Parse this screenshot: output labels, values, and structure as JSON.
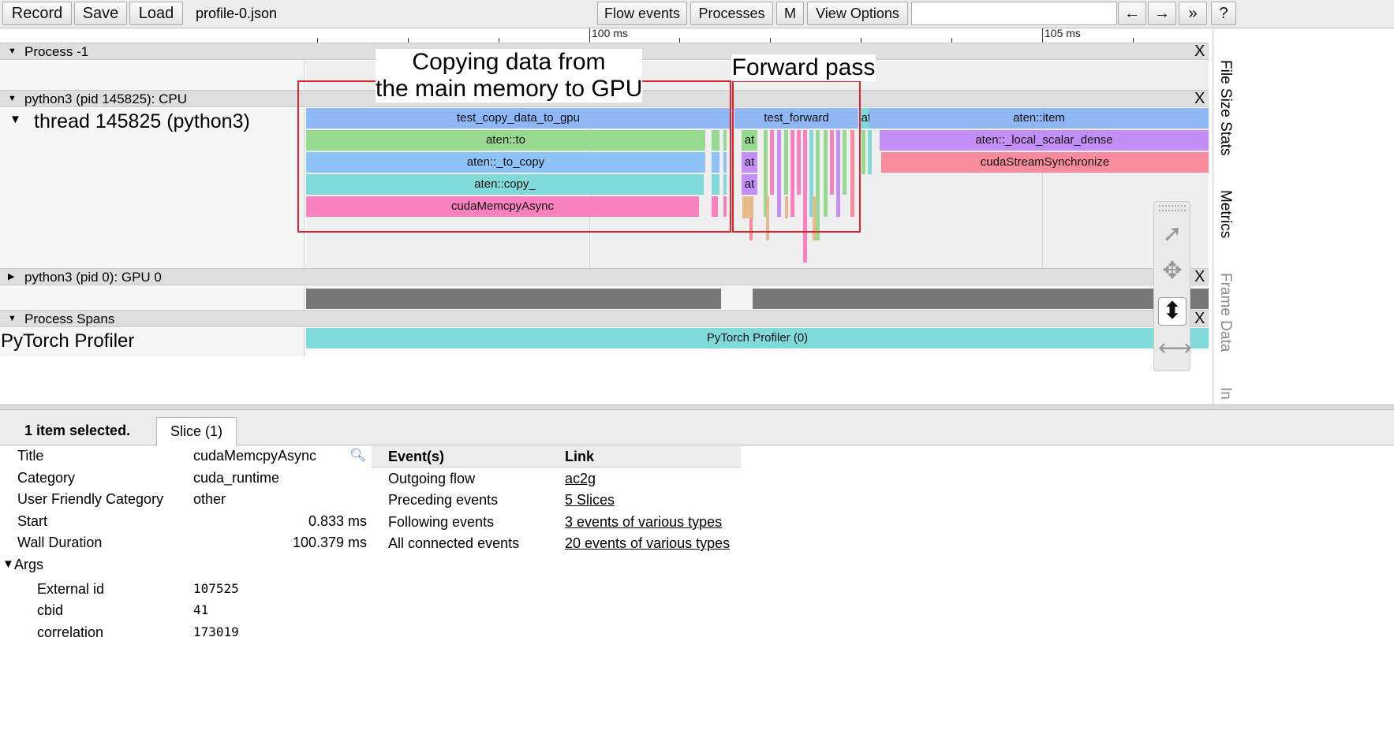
{
  "toolbar": {
    "record": "Record",
    "save": "Save",
    "load": "Load",
    "filename": "profile-0.json",
    "flow_events": "Flow events",
    "processes": "Processes",
    "m": "M",
    "view_options": "View Options",
    "back": "←",
    "forward": "→",
    "more": "»",
    "help": "?"
  },
  "ruler": {
    "label_100": "100 ms",
    "label_105": "105 ms"
  },
  "tracks": {
    "process_neg1": "Process -1",
    "cpu_process": "python3 (pid 145825): CPU",
    "thread": "thread 145825 (python3)",
    "gpu_process": "python3 (pid 0): GPU 0",
    "process_spans": "Process Spans",
    "pytorch_profiler": "PyTorch Profiler",
    "close": "X"
  },
  "slices": {
    "test_copy_data_to_gpu": "test_copy_data_to_gpu",
    "aten_to": "aten::to",
    "aten_to_copy": "aten::_to_copy",
    "aten_copy": "aten::copy_",
    "cuda_memcpy_async": "cudaMemcpyAsync",
    "test_forward": "test_forward",
    "at1": "at",
    "at2": "at",
    "at3": "at",
    "ate": "ate",
    "aten_item": "aten::item",
    "aten_local_scalar_dense": "aten::_local_scalar_dense",
    "cuda_stream_synchronize": "cudaStreamSynchronize",
    "pytorch_profiler_span": "PyTorch Profiler (0)"
  },
  "annotations": {
    "copy_line1": "Copying data from",
    "copy_line2": "the main memory to GPU",
    "forward": "Forward pass"
  },
  "sidebar": {
    "file_size_stats": "File Size Stats",
    "metrics": "Metrics",
    "frame_data": "Frame Data",
    "in": "In"
  },
  "selection": {
    "count": "1 item selected.",
    "tab": "Slice (1)"
  },
  "properties": {
    "title_label": "Title",
    "title_value": "cudaMemcpyAsync",
    "category_label": "Category",
    "category_value": "cuda_runtime",
    "ufc_label": "User Friendly Category",
    "ufc_value": "other",
    "start_label": "Start",
    "start_value": "0.833 ms",
    "wall_label": "Wall Duration",
    "wall_value": "100.379 ms",
    "args_label": "Args",
    "external_id_label": "External id",
    "external_id_value": "107525",
    "cbid_label": "cbid",
    "cbid_value": "41",
    "correlation_label": "correlation",
    "correlation_value": "173019"
  },
  "events": {
    "col_events": "Event(s)",
    "col_link": "Link",
    "outgoing_label": "Outgoing flow",
    "outgoing_link": "ac2g",
    "preceding_label": "Preceding events",
    "preceding_link": "5 Slices",
    "following_label": "Following events",
    "following_link": "3 events of various types",
    "all_label": "All connected events",
    "all_link": "20 events of various types"
  },
  "colors": {
    "blue_slice": "#8fb6f5",
    "green_slice": "#98d990",
    "lightblue_slice": "#8ec3f7",
    "teal_slice": "#80dad9",
    "pink_slice": "#f981bd",
    "purple_slice": "#c48ef7",
    "red_slice": "#f98c9c",
    "gpu_bar": "#777777",
    "annotation_red": "#e0232a"
  }
}
